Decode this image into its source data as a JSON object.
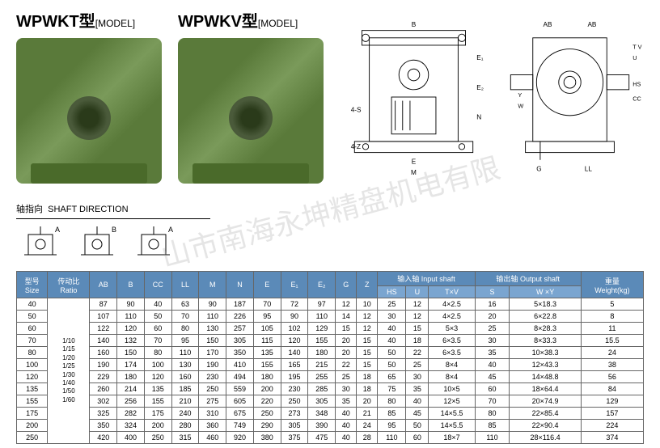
{
  "products": [
    {
      "name": "WPWKT",
      "suffix": "型",
      "model_label": "[MODEL]"
    },
    {
      "name": "WPWKV",
      "suffix": "型",
      "model_label": "[MODEL]"
    }
  ],
  "shaft_direction": {
    "cn": "轴指向",
    "en": "SHAFT DIRECTION",
    "labels": [
      "A",
      "B",
      "A"
    ]
  },
  "diagram_labels": {
    "left": [
      "B",
      "E₁",
      "E₂",
      "4-S",
      "4-Z",
      "N",
      "E",
      "M"
    ],
    "right": [
      "AB",
      "AB",
      "T",
      "V",
      "U",
      "HS",
      "CC",
      "Y",
      "W",
      "G",
      "LL"
    ]
  },
  "table": {
    "headers": {
      "size": {
        "cn": "型号",
        "en": "Size"
      },
      "ratio": {
        "cn": "传动比",
        "en": "Ratio"
      },
      "cols": [
        "AB",
        "B",
        "CC",
        "LL",
        "M",
        "N",
        "E",
        "E₁",
        "E₂",
        "G",
        "Z"
      ],
      "input": {
        "cn": "输入轴",
        "en": "Input shaft",
        "sub": [
          "HS",
          "U",
          "T×V"
        ]
      },
      "output": {
        "cn": "输出轴",
        "en": "Output shaft",
        "sub": [
          "S",
          "W ×Y"
        ]
      },
      "weight": {
        "cn": "重量",
        "en": "Weight(kg)"
      }
    },
    "ratio_text": "1/10\n1/15\n1/20\n1/25\n1/30\n1/40\n1/50\n1/60",
    "rows": [
      {
        "size": "40",
        "d": [
          "87",
          "90",
          "40",
          "63",
          "90",
          "187",
          "70",
          "72",
          "97",
          "12",
          "10",
          "25",
          "12",
          "4×2.5",
          "16",
          "5×18.3",
          "5"
        ]
      },
      {
        "size": "50",
        "d": [
          "107",
          "110",
          "50",
          "70",
          "110",
          "226",
          "95",
          "90",
          "110",
          "14",
          "12",
          "30",
          "12",
          "4×2.5",
          "20",
          "6×22.8",
          "8"
        ]
      },
      {
        "size": "60",
        "d": [
          "122",
          "120",
          "60",
          "80",
          "130",
          "257",
          "105",
          "102",
          "129",
          "15",
          "12",
          "40",
          "15",
          "5×3",
          "25",
          "8×28.3",
          "11"
        ]
      },
      {
        "size": "70",
        "d": [
          "140",
          "132",
          "70",
          "95",
          "150",
          "305",
          "115",
          "120",
          "155",
          "20",
          "15",
          "40",
          "18",
          "6×3.5",
          "30",
          "8×33.3",
          "15.5"
        ]
      },
      {
        "size": "80",
        "d": [
          "160",
          "150",
          "80",
          "110",
          "170",
          "350",
          "135",
          "140",
          "180",
          "20",
          "15",
          "50",
          "22",
          "6×3.5",
          "35",
          "10×38.3",
          "24"
        ]
      },
      {
        "size": "100",
        "d": [
          "190",
          "174",
          "100",
          "130",
          "190",
          "410",
          "155",
          "165",
          "215",
          "22",
          "15",
          "50",
          "25",
          "8×4",
          "40",
          "12×43.3",
          "38"
        ]
      },
      {
        "size": "120",
        "d": [
          "229",
          "180",
          "120",
          "160",
          "230",
          "494",
          "180",
          "195",
          "255",
          "25",
          "18",
          "65",
          "30",
          "8×4",
          "45",
          "14×48.8",
          "56"
        ]
      },
      {
        "size": "135",
        "d": [
          "260",
          "214",
          "135",
          "185",
          "250",
          "559",
          "200",
          "230",
          "285",
          "30",
          "18",
          "75",
          "35",
          "10×5",
          "60",
          "18×64.4",
          "84"
        ]
      },
      {
        "size": "155",
        "d": [
          "302",
          "256",
          "155",
          "210",
          "275",
          "605",
          "220",
          "250",
          "305",
          "35",
          "20",
          "80",
          "40",
          "12×5",
          "70",
          "20×74.9",
          "129"
        ]
      },
      {
        "size": "175",
        "d": [
          "325",
          "282",
          "175",
          "240",
          "310",
          "675",
          "250",
          "273",
          "348",
          "40",
          "21",
          "85",
          "45",
          "14×5.5",
          "80",
          "22×85.4",
          "157"
        ]
      },
      {
        "size": "200",
        "d": [
          "350",
          "324",
          "200",
          "280",
          "360",
          "749",
          "290",
          "305",
          "390",
          "40",
          "24",
          "95",
          "50",
          "14×5.5",
          "85",
          "22×90.4",
          "224"
        ]
      },
      {
        "size": "250",
        "d": [
          "420",
          "400",
          "250",
          "315",
          "460",
          "920",
          "380",
          "375",
          "475",
          "40",
          "28",
          "110",
          "60",
          "18×7",
          "110",
          "28×116.4",
          "374"
        ]
      }
    ]
  },
  "colors": {
    "header_bg": "#5b8ab8",
    "product_green": "#5a7a3a",
    "border": "#666666"
  },
  "watermark": "山市南海永坤精盘机电有限"
}
